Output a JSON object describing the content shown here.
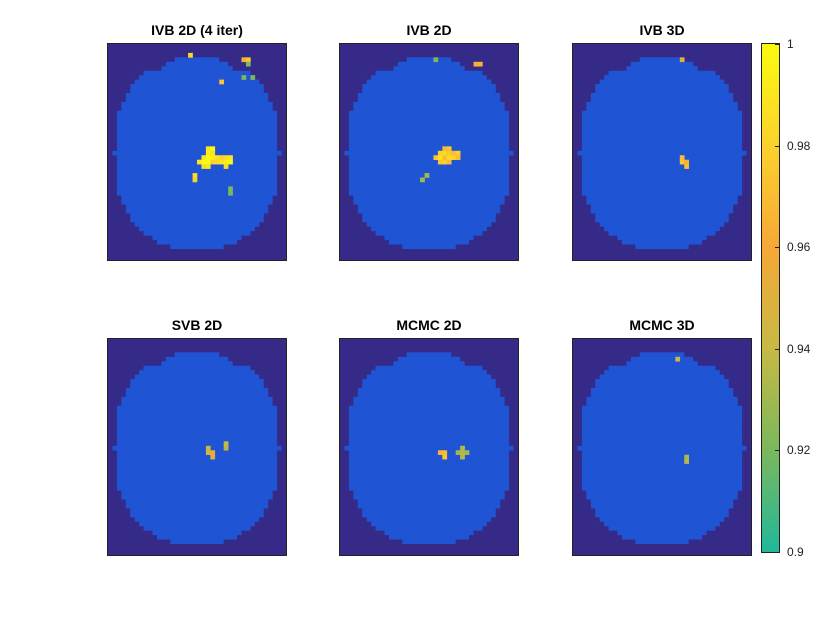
{
  "colors": {
    "background_region": "#352a87",
    "brain": "#1f55d4",
    "colormap": [
      "#21b79c",
      "#7ab85c",
      "#c7b944",
      "#f6a837",
      "#fbd12d",
      "#f9fb0e"
    ]
  },
  "chart_data": {
    "type": "heatmap",
    "layout": "2x3 grid",
    "colorbar": {
      "clim": [
        0.9,
        1
      ],
      "ticks": [
        "1",
        "0.98",
        "0.96",
        "0.94",
        "0.92",
        "0.9"
      ],
      "location": "right"
    },
    "panels": [
      {
        "title": "IVB 2D (4 iter)",
        "hotspots": [
          {
            "c": 22,
            "r": 23,
            "v": 0.99
          },
          {
            "c": 23,
            "r": 23,
            "v": 1.0
          },
          {
            "c": 22,
            "r": 24,
            "v": 0.995
          },
          {
            "c": 23,
            "r": 24,
            "v": 0.99
          },
          {
            "c": 21,
            "r": 25,
            "v": 0.99
          },
          {
            "c": 22,
            "r": 25,
            "v": 1.0
          },
          {
            "c": 23,
            "r": 25,
            "v": 0.995
          },
          {
            "c": 24,
            "r": 25,
            "v": 0.99
          },
          {
            "c": 25,
            "r": 25,
            "v": 0.98
          },
          {
            "c": 26,
            "r": 25,
            "v": 0.985
          },
          {
            "c": 27,
            "r": 25,
            "v": 0.99
          },
          {
            "c": 20,
            "r": 26,
            "v": 0.99
          },
          {
            "c": 21,
            "r": 26,
            "v": 1.0
          },
          {
            "c": 22,
            "r": 26,
            "v": 1.0
          },
          {
            "c": 23,
            "r": 26,
            "v": 0.98
          },
          {
            "c": 24,
            "r": 26,
            "v": 0.985
          },
          {
            "c": 25,
            "r": 26,
            "v": 0.99
          },
          {
            "c": 26,
            "r": 26,
            "v": 0.995
          },
          {
            "c": 27,
            "r": 26,
            "v": 1.0
          },
          {
            "c": 21,
            "r": 27,
            "v": 0.985
          },
          {
            "c": 22,
            "r": 27,
            "v": 0.99
          },
          {
            "c": 26,
            "r": 27,
            "v": 0.985
          },
          {
            "c": 19,
            "r": 29,
            "v": 0.985
          },
          {
            "c": 19,
            "r": 30,
            "v": 0.98
          },
          {
            "c": 27,
            "r": 32,
            "v": 0.92
          },
          {
            "c": 27,
            "r": 33,
            "v": 0.92
          },
          {
            "c": 18,
            "r": 2,
            "v": 0.985
          },
          {
            "c": 30,
            "r": 3,
            "v": 0.965
          },
          {
            "c": 31,
            "r": 3,
            "v": 0.975
          },
          {
            "c": 31,
            "r": 4,
            "v": 0.92
          },
          {
            "c": 30,
            "r": 7,
            "v": 0.92
          },
          {
            "c": 32,
            "r": 7,
            "v": 0.92
          },
          {
            "c": 25,
            "r": 8,
            "v": 0.975
          }
        ]
      },
      {
        "title": "IVB 2D",
        "hotspots": [
          {
            "c": 23,
            "r": 23,
            "v": 0.97
          },
          {
            "c": 24,
            "r": 23,
            "v": 0.975
          },
          {
            "c": 22,
            "r": 24,
            "v": 0.98
          },
          {
            "c": 23,
            "r": 24,
            "v": 0.985
          },
          {
            "c": 24,
            "r": 24,
            "v": 0.975
          },
          {
            "c": 25,
            "r": 24,
            "v": 0.97
          },
          {
            "c": 26,
            "r": 24,
            "v": 0.98
          },
          {
            "c": 21,
            "r": 25,
            "v": 0.975
          },
          {
            "c": 22,
            "r": 25,
            "v": 0.99
          },
          {
            "c": 23,
            "r": 25,
            "v": 0.97
          },
          {
            "c": 24,
            "r": 25,
            "v": 0.985
          },
          {
            "c": 25,
            "r": 25,
            "v": 0.98
          },
          {
            "c": 26,
            "r": 25,
            "v": 0.97
          },
          {
            "c": 22,
            "r": 26,
            "v": 0.975
          },
          {
            "c": 23,
            "r": 26,
            "v": 0.98
          },
          {
            "c": 24,
            "r": 26,
            "v": 0.97
          },
          {
            "c": 19,
            "r": 29,
            "v": 0.93
          },
          {
            "c": 18,
            "r": 30,
            "v": 0.93
          },
          {
            "c": 21,
            "r": 3,
            "v": 0.92
          },
          {
            "c": 30,
            "r": 4,
            "v": 0.965
          },
          {
            "c": 31,
            "r": 4,
            "v": 0.965
          }
        ]
      },
      {
        "title": "IVB 3D",
        "hotspots": [
          {
            "c": 24,
            "r": 25,
            "v": 0.97
          },
          {
            "c": 24,
            "r": 26,
            "v": 0.975
          },
          {
            "c": 25,
            "r": 26,
            "v": 0.965
          },
          {
            "c": 25,
            "r": 27,
            "v": 0.97
          },
          {
            "c": 24,
            "r": 3,
            "v": 0.95
          }
        ]
      },
      {
        "title": "SVB 2D",
        "hotspots": [
          {
            "c": 22,
            "r": 24,
            "v": 0.94
          },
          {
            "c": 22,
            "r": 25,
            "v": 0.945
          },
          {
            "c": 23,
            "r": 25,
            "v": 0.96
          },
          {
            "c": 23,
            "r": 26,
            "v": 0.95
          },
          {
            "c": 26,
            "r": 23,
            "v": 0.94
          },
          {
            "c": 26,
            "r": 24,
            "v": 0.935
          }
        ]
      },
      {
        "title": "MCMC 2D",
        "hotspots": [
          {
            "c": 22,
            "r": 25,
            "v": 0.965
          },
          {
            "c": 23,
            "r": 25,
            "v": 0.97
          },
          {
            "c": 23,
            "r": 26,
            "v": 0.975
          },
          {
            "c": 27,
            "r": 24,
            "v": 0.935
          },
          {
            "c": 26,
            "r": 25,
            "v": 0.93
          },
          {
            "c": 27,
            "r": 25,
            "v": 0.935
          },
          {
            "c": 28,
            "r": 25,
            "v": 0.93
          },
          {
            "c": 27,
            "r": 26,
            "v": 0.935
          }
        ]
      },
      {
        "title": "MCMC 3D",
        "hotspots": [
          {
            "c": 23,
            "r": 4,
            "v": 0.94
          },
          {
            "c": 25,
            "r": 26,
            "v": 0.93
          },
          {
            "c": 25,
            "r": 27,
            "v": 0.935
          }
        ]
      }
    ]
  }
}
